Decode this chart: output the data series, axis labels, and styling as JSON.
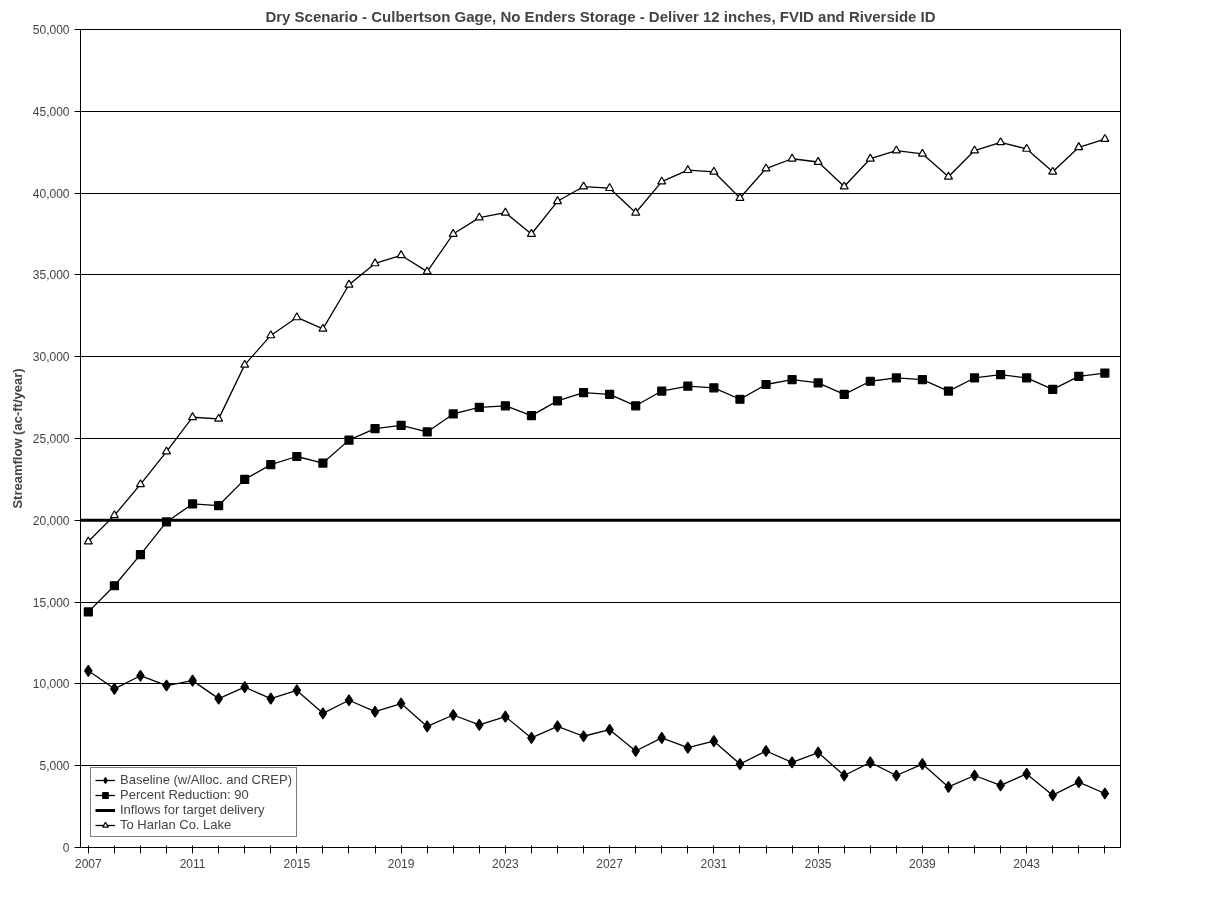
{
  "chart_data": {
    "type": "line",
    "title": "Dry Scenario - Culbertson Gage, No Enders Storage - Deliver 12 inches, FVID and Riverside ID",
    "ylabel": "Streamflow (ac-ft/year)",
    "x": [
      2007,
      2008,
      2009,
      2010,
      2011,
      2012,
      2013,
      2014,
      2015,
      2016,
      2017,
      2018,
      2019,
      2020,
      2021,
      2022,
      2023,
      2024,
      2025,
      2026,
      2027,
      2028,
      2029,
      2030,
      2031,
      2032,
      2033,
      2034,
      2035,
      2036,
      2037,
      2038,
      2039,
      2040,
      2041,
      2042,
      2043,
      2044,
      2045,
      2046
    ],
    "xlim": [
      2006.7,
      2046.6
    ],
    "xticks": [
      2007,
      {
        "value": 2008,
        "label": null
      },
      {
        "value": 2009,
        "label": null
      },
      {
        "value": 2010,
        "label": null
      },
      2011,
      {
        "value": 2012,
        "label": null
      },
      {
        "value": 2013,
        "label": null
      },
      {
        "value": 2014,
        "label": null
      },
      2015,
      {
        "value": 2016,
        "label": null
      },
      {
        "value": 2017,
        "label": null
      },
      {
        "value": 2018,
        "label": null
      },
      2019,
      {
        "value": 2020,
        "label": null
      },
      {
        "value": 2021,
        "label": null
      },
      {
        "value": 2022,
        "label": null
      },
      2023,
      {
        "value": 2024,
        "label": null
      },
      {
        "value": 2025,
        "label": null
      },
      {
        "value": 2026,
        "label": null
      },
      2027,
      {
        "value": 2028,
        "label": null
      },
      {
        "value": 2029,
        "label": null
      },
      {
        "value": 2030,
        "label": null
      },
      2031,
      {
        "value": 2032,
        "label": null
      },
      {
        "value": 2033,
        "label": null
      },
      {
        "value": 2034,
        "label": null
      },
      2035,
      {
        "value": 2036,
        "label": null
      },
      {
        "value": 2037,
        "label": null
      },
      {
        "value": 2038,
        "label": null
      },
      2039,
      {
        "value": 2040,
        "label": null
      },
      {
        "value": 2041,
        "label": null
      },
      {
        "value": 2042,
        "label": null
      },
      2043,
      {
        "value": 2044,
        "label": null
      },
      {
        "value": 2045,
        "label": null
      },
      {
        "value": 2046,
        "label": null
      }
    ],
    "ylim": [
      0,
      50000
    ],
    "yticks": [
      0,
      {
        "value": 5000,
        "label": "5,000"
      },
      {
        "value": 10000,
        "label": "10,000"
      },
      {
        "value": 15000,
        "label": "15,000"
      },
      {
        "value": 20000,
        "label": "20,000"
      },
      {
        "value": 25000,
        "label": "25,000"
      },
      {
        "value": 30000,
        "label": "30,000"
      },
      {
        "value": 35000,
        "label": "35,000"
      },
      {
        "value": 40000,
        "label": "40,000"
      },
      {
        "value": 45000,
        "label": "45,000"
      },
      {
        "value": 50000,
        "label": "50,000"
      }
    ],
    "grid": "y",
    "legend": "bottom left",
    "series": [
      {
        "name": "Baseline (w/Alloc. and CREP)",
        "color": "#000000",
        "marker": "diamond",
        "values": [
          10800,
          9700,
          10500,
          9900,
          10200,
          9100,
          9800,
          9100,
          9600,
          8200,
          9000,
          8300,
          8800,
          7400,
          8100,
          7500,
          8000,
          6700,
          7400,
          6800,
          7200,
          5900,
          6700,
          6100,
          6500,
          5100,
          5900,
          5200,
          5800,
          4400,
          5200,
          4400,
          5100,
          3700,
          4400,
          3800,
          4500,
          3200,
          4000,
          3300
        ]
      },
      {
        "name": "Percent Reduction: 90",
        "color": "#000000",
        "marker": "square",
        "values": [
          14400,
          16000,
          17900,
          19900,
          21000,
          20900,
          22500,
          23400,
          23900,
          23500,
          24900,
          25600,
          25800,
          25400,
          26500,
          26900,
          27000,
          26400,
          27300,
          27800,
          27700,
          27000,
          27900,
          28200,
          28100,
          27400,
          28300,
          28600,
          28400,
          27700,
          28500,
          28700,
          28600,
          27900,
          28700,
          28900,
          28700,
          28000,
          28800,
          29000
        ]
      },
      {
        "name": "Inflows for target delivery",
        "color": "#000000",
        "marker": "none",
        "x": [
          2006.7,
          2046.6
        ],
        "values": [
          20000,
          20000
        ]
      },
      {
        "name": "To Harlan Co. Lake",
        "color": "#000000",
        "marker": "triangle",
        "values": [
          18700,
          20300,
          22200,
          24200,
          26300,
          26200,
          29500,
          31300,
          32400,
          31700,
          34400,
          35700,
          36200,
          35200,
          37500,
          38500,
          38800,
          37500,
          39500,
          40400,
          40300,
          38800,
          40700,
          41400,
          41300,
          39700,
          41500,
          42100,
          41900,
          40400,
          42100,
          42600,
          42400,
          41000,
          42600,
          43100,
          42700,
          41300,
          42800,
          43300
        ]
      }
    ]
  }
}
